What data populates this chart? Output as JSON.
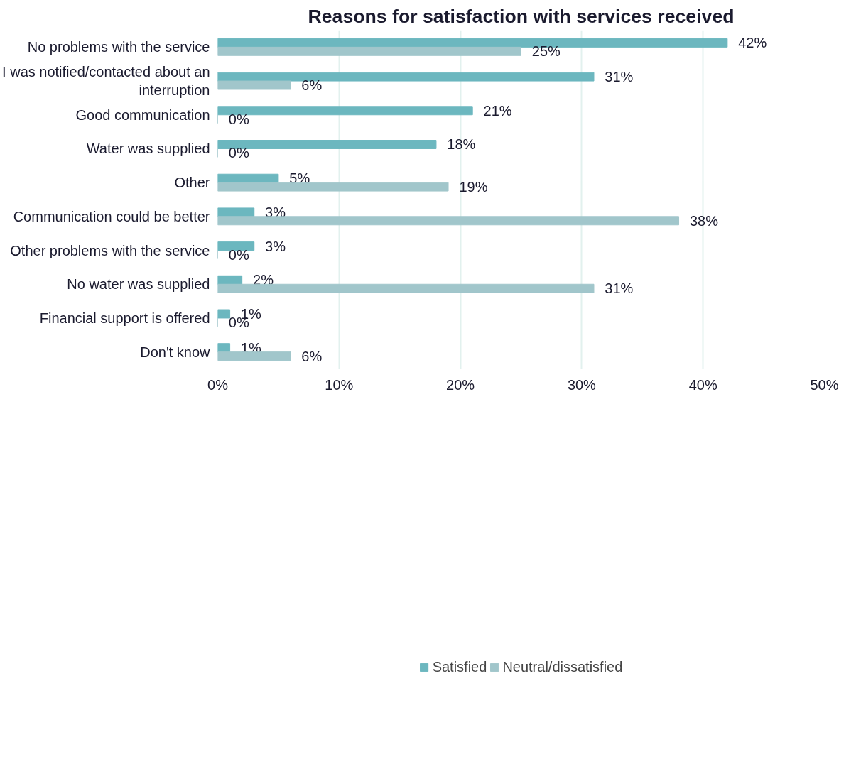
{
  "chart_data": {
    "type": "bar",
    "orientation": "horizontal",
    "title": "Reasons for satisfaction with services received",
    "categories": [
      "No problems with the service",
      "I was notified/contacted about an interruption",
      "Good communication",
      "Water was supplied",
      "Other",
      "Communication could be better",
      "Other problems with the service",
      "No water was supplied",
      "Financial support is offered",
      "Don't know"
    ],
    "series": [
      {
        "name": "Satisfied",
        "color": "#6cb7bf",
        "values": [
          42,
          31,
          21,
          18,
          5,
          3,
          3,
          2,
          1,
          1
        ],
        "value_labels": [
          "42%",
          "31%",
          "21%",
          "18%",
          "5%",
          "3%",
          "3%",
          "2%",
          "1%",
          "1%"
        ]
      },
      {
        "name": "Neutral/dissatisfied",
        "color": "#a1c6cb",
        "values": [
          25,
          6,
          0,
          0,
          19,
          38,
          0,
          31,
          0,
          6
        ],
        "value_labels": [
          "25%",
          "6%",
          "0%",
          "0%",
          "19%",
          "38%",
          "0%",
          "31%",
          "0%",
          "6%"
        ]
      }
    ],
    "xlim": [
      0,
      50
    ],
    "xticks": [
      {
        "value": 0,
        "label": "0%"
      },
      {
        "value": 10,
        "label": "10%"
      },
      {
        "value": 20,
        "label": "20%"
      },
      {
        "value": 30,
        "label": "30%"
      },
      {
        "value": 40,
        "label": "40%"
      },
      {
        "value": 50,
        "label": "50%"
      }
    ],
    "grid": "x",
    "legend": "bottom"
  }
}
